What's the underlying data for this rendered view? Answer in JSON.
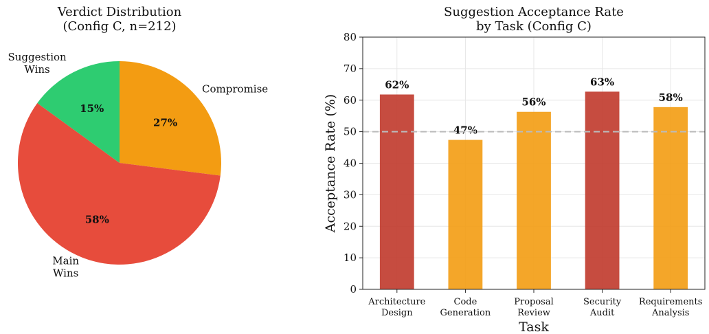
{
  "chart_data": [
    {
      "type": "pie",
      "title": "Verdict Distribution\n(Config C, n=212)",
      "slices": [
        {
          "label": "Compromise",
          "value": 27,
          "display": "27%",
          "color": "#f39c12"
        },
        {
          "label": "Main\nWins",
          "value": 58,
          "display": "58%",
          "color": "#e74c3c"
        },
        {
          "label": "Suggestion\nWins",
          "value": 15,
          "display": "15%",
          "color": "#2ecc71"
        }
      ],
      "start_angle": "12 o'clock",
      "direction": "clockwise"
    },
    {
      "type": "bar",
      "title": "Suggestion Acceptance Rate\nby Task (Config C)",
      "categories": [
        "Architecture\nDesign",
        "Code\nGeneration",
        "Proposal\nReview",
        "Security\nAudit",
        "Requirements\nAnalysis"
      ],
      "values": [
        61.8,
        47.4,
        56.3,
        62.7,
        57.8
      ],
      "value_labels": [
        "62%",
        "47%",
        "56%",
        "63%",
        "58%"
      ],
      "colors": [
        "#c0392b",
        "#f39c12",
        "#f39c12",
        "#c0392b",
        "#f39c12"
      ],
      "xlabel": "Task",
      "ylabel": "Acceptance Rate (%)",
      "ylim": [
        0,
        80
      ],
      "yticks": [
        0,
        10,
        20,
        30,
        40,
        50,
        60,
        70,
        80
      ],
      "reference_line": {
        "value": 50,
        "style": "dashed",
        "color": "#bbbbbb"
      },
      "grid": true
    }
  ]
}
